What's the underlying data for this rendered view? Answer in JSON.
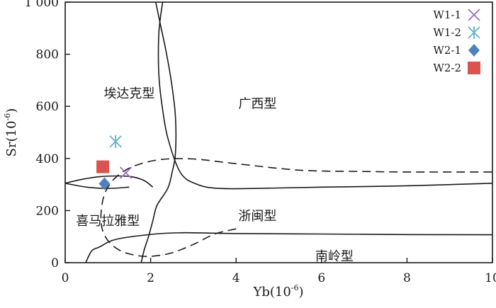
{
  "chart_data": {
    "type": "scatter",
    "xlabel": "Yb(10",
    "xlabel_exp": "-6",
    "xlabel_close": ")",
    "ylabel": "Sr(10",
    "ylabel_exp": "-6",
    "ylabel_close": ")",
    "xlim": [
      0,
      10
    ],
    "ylim": [
      0,
      1000
    ],
    "x_ticks": [
      0,
      2,
      4,
      6,
      8,
      10
    ],
    "y_ticks": [
      0,
      200,
      400,
      600,
      800,
      1000
    ],
    "x_tick_labels": [
      "0",
      "2",
      "4",
      "6",
      "8",
      "10"
    ],
    "y_tick_labels": [
      "0",
      "200",
      "400",
      "600",
      "800",
      "1 000"
    ],
    "grid": false,
    "legend_position": "top-right",
    "series": [
      {
        "name": "W1-1",
        "marker": "x",
        "color": "#9b6fc0",
        "x": [
          1.42
        ],
        "y": [
          345
        ]
      },
      {
        "name": "W1-2",
        "marker": "asterisk",
        "color": "#5fb3c4",
        "x": [
          1.18
        ],
        "y": [
          465
        ]
      },
      {
        "name": "W2-1",
        "marker": "diamond",
        "color": "#4f81bd",
        "x": [
          0.92
        ],
        "y": [
          303
        ]
      },
      {
        "name": "W2-2",
        "marker": "square",
        "color": "#d9534f",
        "x": [
          0.88
        ],
        "y": [
          368
        ]
      }
    ],
    "regions": [
      {
        "label": "埃达克型",
        "x": 1.5,
        "y": 650
      },
      {
        "label": "广西型",
        "x": 4.5,
        "y": 610
      },
      {
        "label": "喜马拉雅型",
        "x": 1.0,
        "y": 160
      },
      {
        "label": "浙闽型",
        "x": 4.5,
        "y": 180
      },
      {
        "label": "南岭型",
        "x": 6.3,
        "y": 25
      }
    ],
    "boundaries": [
      {
        "style": "solid",
        "x": [
          1.78,
          1.85,
          1.95,
          2.05,
          2.15,
          2.4,
          2.5,
          2.58,
          2.58,
          2.48,
          2.35,
          2.22,
          2.12
        ],
        "y": [
          0,
          50,
          100,
          160,
          220,
          285,
          345,
          420,
          560,
          700,
          820,
          920,
          1000
        ]
      },
      {
        "style": "solid",
        "x": [
          2.28,
          2.2,
          2.18,
          2.2,
          2.27,
          2.4,
          2.7,
          3.1,
          3.6,
          4.5,
          6,
          8,
          10
        ],
        "y": [
          1000,
          900,
          800,
          700,
          600,
          480,
          345,
          300,
          285,
          285,
          290,
          295,
          305
        ]
      },
      {
        "style": "solid",
        "x": [
          0,
          0.4,
          0.8,
          1.2,
          1.55,
          1.85,
          2.05
        ],
        "y": [
          305,
          320,
          330,
          333,
          330,
          315,
          290
        ]
      },
      {
        "style": "solid",
        "x": [
          0,
          0.5,
          1.0,
          1.5
        ],
        "y": [
          305,
          290,
          285,
          290
        ]
      },
      {
        "style": "solid",
        "x": [
          0.48,
          0.62,
          0.8,
          1.2,
          2.1,
          2.8,
          4,
          6,
          8,
          10
        ],
        "y": [
          0,
          45,
          60,
          90,
          110,
          115,
          112,
          110,
          108,
          107
        ]
      },
      {
        "style": "dashed",
        "x": [
          4,
          3.5,
          3.0,
          2.5,
          2.05,
          1.7,
          1.3,
          1.0,
          0.85,
          0.85,
          0.95,
          1.2,
          1.6,
          2.2,
          3.0,
          4,
          5.5,
          7,
          8,
          10
        ],
        "y": [
          130,
          110,
          70,
          38,
          25,
          27,
          45,
          85,
          140,
          210,
          275,
          330,
          370,
          395,
          398,
          380,
          355,
          350,
          348,
          348
        ]
      }
    ]
  }
}
